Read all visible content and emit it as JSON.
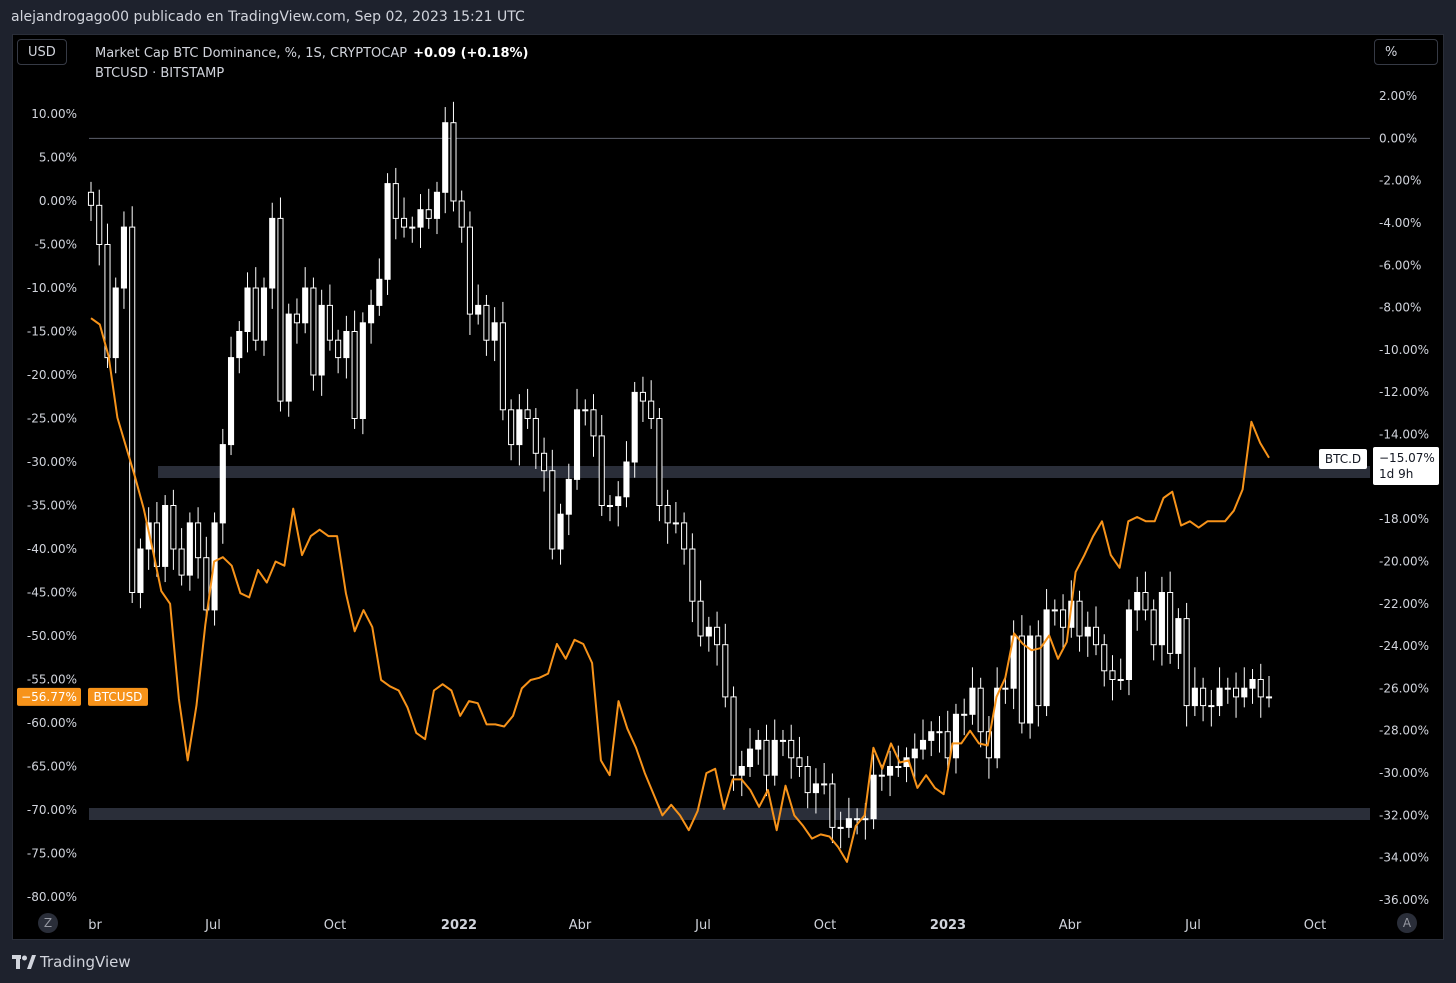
{
  "header": {
    "publisher_text": "alejandrogago00 publicado en TradingView.com, Sep 02, 2023 15:21 UTC"
  },
  "toolbar": {
    "currency_button": "USD",
    "percent_button": "%",
    "zoom_button": "Z",
    "auto_button": "A"
  },
  "legend": {
    "main_series": "Market Cap BTC Dominance, %, 1S, CRYPTOCAP",
    "main_change": "+0.09 (+0.18%)",
    "second_series": "BTCUSD · BITSTAMP"
  },
  "footer": {
    "brand": "TradingView"
  },
  "colors": {
    "background": "#000000",
    "candle": "#ffffff",
    "line": "#f7931a",
    "zone": "#2a2e39"
  },
  "chart_data": {
    "type": "line",
    "x_ticks": [
      "br",
      "Jul",
      "Oct",
      "2022",
      "Abr",
      "Jul",
      "Oct",
      "2023",
      "Abr",
      "Jul",
      "Oct"
    ],
    "left_axis": {
      "ticks": [
        "10.00%",
        "5.00%",
        "0.00%",
        "-5.00%",
        "-10.00%",
        "-15.00%",
        "-20.00%",
        "-25.00%",
        "-30.00%",
        "-35.00%",
        "-40.00%",
        "-45.00%",
        "-50.00%",
        "-55.00%",
        "-60.00%",
        "-65.00%",
        "-70.00%",
        "-75.00%",
        "-80.00%"
      ],
      "ylim": [
        -80,
        10
      ]
    },
    "right_axis": {
      "ticks": [
        "2.00%",
        "0.00%",
        "-2.00%",
        "-4.00%",
        "-6.00%",
        "-8.00%",
        "-10.00%",
        "-12.00%",
        "-14.00%",
        "-18.00%",
        "-20.00%",
        "-22.00%",
        "-24.00%",
        "-26.00%",
        "-28.00%",
        "-30.00%",
        "-32.00%",
        "-34.00%",
        "-36.00%"
      ],
      "ylim": [
        -36,
        2
      ]
    },
    "series": [
      {
        "name": "BTCUSD",
        "last_label": "−56.77%",
        "values": [
          -0.5,
          -5,
          -18,
          -10,
          -3,
          -45,
          -40,
          -37,
          -42,
          -35,
          -40,
          -43,
          -37,
          -41,
          -47,
          -37,
          -28,
          -18,
          -15,
          -10,
          -16,
          -10,
          -2,
          -23,
          -13,
          -14,
          -10,
          -20,
          -12,
          -16,
          -18,
          -15,
          -25,
          -14,
          -12,
          -9,
          2,
          -2,
          -3,
          -3,
          -1,
          -2,
          1,
          9,
          0,
          -3,
          -13,
          -12,
          -16,
          -14,
          -24,
          -28,
          -24,
          -25,
          -29,
          -31,
          -40,
          -36,
          -32,
          -24,
          -24,
          -27,
          -35,
          -35,
          -34,
          -30,
          -22,
          -23,
          -25,
          -35,
          -37,
          -37,
          -40,
          -46,
          -50,
          -49,
          -51,
          -57,
          -66,
          -65,
          -63,
          -62,
          -66,
          -62,
          -62,
          -64,
          -65,
          -68,
          -67,
          -67,
          -72,
          -72,
          -71,
          -71,
          -71,
          -66,
          -66,
          -65,
          -65,
          -64,
          -63,
          -62,
          -61,
          -61,
          -64,
          -59,
          -59,
          -56,
          -61,
          -64,
          -56,
          -56,
          -50,
          -60,
          -50,
          -58,
          -47,
          -47,
          -49,
          -46,
          -50,
          -49,
          -51,
          -54,
          -55,
          -55,
          -47,
          -45,
          -47,
          -51,
          -45,
          -52,
          -48,
          -58,
          -56,
          -58,
          -58,
          -56,
          -56,
          -57,
          -56,
          -55,
          -57,
          -57
        ]
      },
      {
        "name": "BTC.D",
        "last_label": "−15.07%",
        "countdown": "1d 9h",
        "values": [
          -8.5,
          -8.8,
          -10.3,
          -13.2,
          -14.6,
          -16,
          -17.5,
          -19.4,
          -21.4,
          -22,
          -26.5,
          -29.4,
          -26.8,
          -23,
          -20,
          -19.8,
          -20.2,
          -21.5,
          -21.7,
          -20.4,
          -21,
          -20,
          -20.2,
          -17.5,
          -19.7,
          -18.8,
          -18.5,
          -18.8,
          -18.8,
          -21.5,
          -23.3,
          -22.3,
          -23.1,
          -25.6,
          -25.9,
          -26.1,
          -26.9,
          -28.1,
          -28.4,
          -26.1,
          -25.8,
          -26.1,
          -27.3,
          -26.6,
          -26.7,
          -27.7,
          -27.7,
          -27.8,
          -27.3,
          -26,
          -25.6,
          -25.5,
          -25.3,
          -23.9,
          -24.6,
          -23.7,
          -23.9,
          -24.8,
          -29.4,
          -30.1,
          -26.6,
          -27.9,
          -28.8,
          -30,
          -31,
          -32,
          -31.5,
          -32,
          -32.7,
          -31.8,
          -30,
          -29.8,
          -31.7,
          -30.3,
          -30.3,
          -30.8,
          -31.6,
          -30.8,
          -32.7,
          -30.6,
          -32,
          -32.5,
          -33.1,
          -32.9,
          -33,
          -33.5,
          -34.2,
          -32.5,
          -32,
          -28.8,
          -29.8,
          -28.6,
          -29.5,
          -29.4,
          -30.7,
          -30.1,
          -30.7,
          -31,
          -28.6,
          -28.6,
          -28,
          -28.6,
          -28.7,
          -26.4,
          -25.5,
          -23.4,
          -23.9,
          -24.2,
          -24.1,
          -23.5,
          -24.6,
          -23.8,
          -20.5,
          -19.7,
          -18.8,
          -18.1,
          -19.7,
          -20.3,
          -18.1,
          -17.9,
          -18.1,
          -18.1,
          -17,
          -16.7,
          -18.3,
          -18.1,
          -18.4,
          -18.1,
          -18.1,
          -18.1,
          -17.6,
          -16.6,
          -13.4,
          -14.4,
          -15.1
        ]
      }
    ]
  }
}
